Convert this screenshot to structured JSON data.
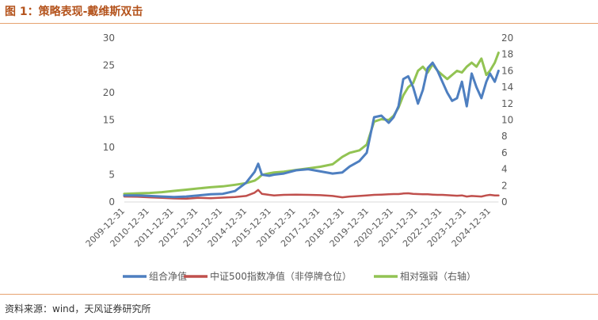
{
  "header": {
    "title": "图 1：策略表现-戴维斯双击"
  },
  "footer": {
    "source": "资料来源：wind，天风证券研究所"
  },
  "colors": {
    "portfolio": "#4e7fc0",
    "index": "#c0504d",
    "relative": "#92c353",
    "title": "#b4531c",
    "rule": "#e6a26f"
  },
  "chart_data": {
    "type": "line",
    "title": "",
    "xlabel": "",
    "ylabel": "",
    "x_ticks": [
      "2009-12-31",
      "2010-12-31",
      "2011-12-31",
      "2012-12-31",
      "2013-12-31",
      "2014-12-31",
      "2015-12-31",
      "2016-12-31",
      "2017-12-31",
      "2018-12-31",
      "2019-12-31",
      "2020-12-31",
      "2021-12-31",
      "2022-12-31",
      "2023-12-31",
      "2024-12-31"
    ],
    "left_axis": {
      "min": 0,
      "max": 30,
      "ticks": [
        0,
        5,
        10,
        15,
        20,
        25,
        30
      ]
    },
    "right_axis": {
      "min": 0,
      "max": 20,
      "ticks": [
        0,
        2,
        4,
        6,
        8,
        10,
        12,
        14,
        16,
        18,
        20
      ]
    },
    "grid": false,
    "legend_position": "bottom",
    "series": [
      {
        "name": "组合净值",
        "axis": "left",
        "color": "#4e7fc0",
        "x": [
          2009.96,
          2010.5,
          2011.0,
          2011.5,
          2012.0,
          2012.5,
          2013.0,
          2013.5,
          2014.0,
          2014.5,
          2014.95,
          2015.3,
          2015.45,
          2015.6,
          2015.9,
          2016.1,
          2016.5,
          2017.0,
          2017.5,
          2018.0,
          2018.5,
          2018.9,
          2019.2,
          2019.6,
          2019.9,
          2020.2,
          2020.5,
          2020.8,
          2021.0,
          2021.2,
          2021.4,
          2021.6,
          2021.8,
          2022.0,
          2022.2,
          2022.4,
          2022.6,
          2022.8,
          2023.0,
          2023.2,
          2023.4,
          2023.6,
          2023.8,
          2024.0,
          2024.2,
          2024.4,
          2024.6,
          2024.8,
          2024.95,
          2025.15,
          2025.3
        ],
        "y": [
          1.2,
          1.2,
          1.1,
          1.0,
          0.9,
          1.0,
          1.2,
          1.4,
          1.5,
          2.0,
          3.5,
          5.5,
          7.0,
          5.0,
          4.8,
          5.0,
          5.2,
          5.8,
          6.0,
          5.6,
          5.2,
          5.4,
          6.5,
          7.5,
          9.0,
          15.5,
          15.8,
          14.5,
          15.5,
          17.5,
          22.5,
          23.0,
          21.0,
          18.0,
          20.5,
          24.5,
          25.5,
          24.0,
          22.0,
          20.0,
          18.5,
          19.0,
          22.0,
          17.5,
          23.5,
          21.0,
          19.0,
          22.0,
          23.5,
          22.0,
          24.0
        ]
      },
      {
        "name": "中证500指数净值（非停牌仓位）",
        "axis": "left",
        "color": "#c0504d",
        "x": [
          2009.96,
          2010.5,
          2011.0,
          2011.5,
          2012.0,
          2012.5,
          2013.0,
          2013.5,
          2014.0,
          2014.5,
          2014.95,
          2015.3,
          2015.45,
          2015.6,
          2015.9,
          2016.1,
          2016.5,
          2017.0,
          2017.5,
          2018.0,
          2018.5,
          2018.9,
          2019.2,
          2019.6,
          2019.9,
          2020.2,
          2020.5,
          2020.8,
          2021.0,
          2021.2,
          2021.4,
          2021.6,
          2021.8,
          2022.0,
          2022.2,
          2022.4,
          2022.6,
          2022.8,
          2023.0,
          2023.2,
          2023.4,
          2023.6,
          2023.8,
          2024.0,
          2024.2,
          2024.4,
          2024.6,
          2024.8,
          2024.95,
          2025.15,
          2025.3
        ],
        "y": [
          1.0,
          0.95,
          0.85,
          0.75,
          0.65,
          0.6,
          0.75,
          0.7,
          0.8,
          0.9,
          1.1,
          1.7,
          2.2,
          1.5,
          1.3,
          1.2,
          1.3,
          1.35,
          1.3,
          1.25,
          1.1,
          0.85,
          1.0,
          1.1,
          1.2,
          1.3,
          1.35,
          1.4,
          1.45,
          1.45,
          1.55,
          1.6,
          1.5,
          1.45,
          1.4,
          1.4,
          1.35,
          1.3,
          1.3,
          1.25,
          1.2,
          1.15,
          1.2,
          1.0,
          1.1,
          1.05,
          1.0,
          1.2,
          1.3,
          1.2,
          1.2
        ]
      },
      {
        "name": "相对强弱（右轴）",
        "axis": "right",
        "color": "#92c353",
        "x": [
          2009.96,
          2010.5,
          2011.0,
          2011.5,
          2012.0,
          2012.5,
          2013.0,
          2013.5,
          2014.0,
          2014.5,
          2014.95,
          2015.3,
          2015.45,
          2015.6,
          2015.9,
          2016.1,
          2016.5,
          2017.0,
          2017.5,
          2018.0,
          2018.5,
          2018.9,
          2019.2,
          2019.6,
          2019.9,
          2020.2,
          2020.5,
          2020.8,
          2021.0,
          2021.2,
          2021.4,
          2021.6,
          2021.8,
          2022.0,
          2022.2,
          2022.4,
          2022.6,
          2022.8,
          2023.0,
          2023.2,
          2023.4,
          2023.6,
          2023.8,
          2024.0,
          2024.2,
          2024.4,
          2024.6,
          2024.8,
          2024.95,
          2025.15,
          2025.3
        ],
        "y": [
          1.0,
          1.05,
          1.1,
          1.2,
          1.35,
          1.5,
          1.65,
          1.8,
          1.9,
          2.1,
          2.3,
          2.6,
          2.9,
          3.3,
          3.5,
          3.6,
          3.7,
          3.9,
          4.1,
          4.3,
          4.6,
          5.5,
          6.0,
          6.3,
          7.0,
          9.8,
          10.1,
          10.0,
          10.5,
          11.5,
          13.0,
          14.0,
          14.5,
          16.0,
          16.5,
          15.8,
          16.8,
          16.0,
          15.5,
          15.0,
          15.5,
          16.0,
          15.8,
          16.5,
          17.0,
          16.5,
          17.5,
          15.5,
          16.0,
          17.0,
          18.2
        ]
      }
    ]
  }
}
